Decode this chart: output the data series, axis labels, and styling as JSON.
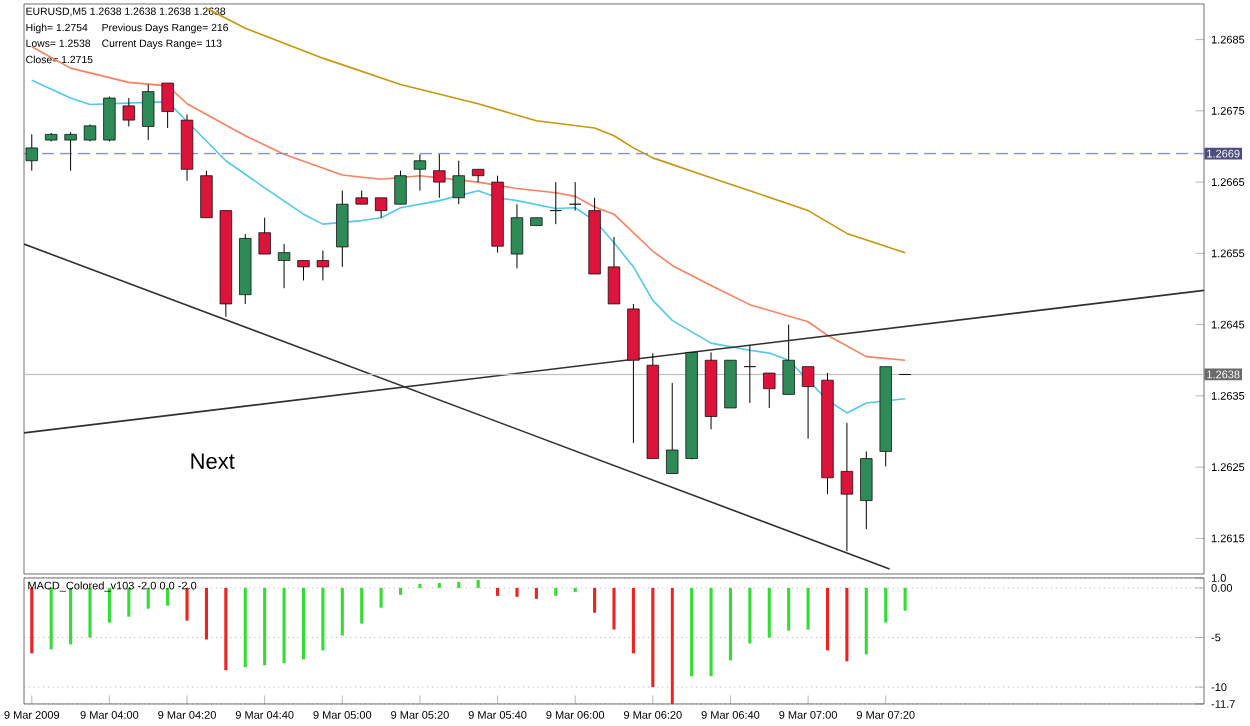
{
  "chart_data": [
    {
      "type": "candlestick",
      "annotations": [
        "EURUSD,M5  1.2638 1.2638 1.2638 1.2638",
        "High= 1.2754",
        "Previous Days Range= 216",
        "Lows= 1.2538",
        "Current Days Range= 113",
        "Close= 1.2715",
        "Next"
      ],
      "x": [
        "2009-03-09T03:40",
        "2009-03-09T03:45",
        "2009-03-09T03:50",
        "2009-03-09T03:55",
        "2009-03-09T04:00",
        "2009-03-09T04:05",
        "2009-03-09T04:10",
        "2009-03-09T04:15",
        "2009-03-09T04:20",
        "2009-03-09T04:25",
        "2009-03-09T04:30",
        "2009-03-09T04:35",
        "2009-03-09T04:40",
        "2009-03-09T04:45",
        "2009-03-09T04:50",
        "2009-03-09T04:55",
        "2009-03-09T05:00",
        "2009-03-09T05:05",
        "2009-03-09T05:10",
        "2009-03-09T05:15",
        "2009-03-09T05:20",
        "2009-03-09T05:25",
        "2009-03-09T05:30",
        "2009-03-09T05:35",
        "2009-03-09T05:40",
        "2009-03-09T05:45",
        "2009-03-09T05:50",
        "2009-03-09T05:55",
        "2009-03-09T06:00",
        "2009-03-09T06:05",
        "2009-03-09T06:10",
        "2009-03-09T06:15",
        "2009-03-09T06:20",
        "2009-03-09T06:25",
        "2009-03-09T06:30",
        "2009-03-09T06:35",
        "2009-03-09T06:40",
        "2009-03-09T06:45",
        "2009-03-09T06:50",
        "2009-03-09T06:55",
        "2009-03-09T07:00",
        "2009-03-09T07:05",
        "2009-03-09T07:10",
        "2009-03-09T07:15",
        "2009-03-09T07:20",
        "2009-03-09T07:25"
      ],
      "ohlc": [
        [
          1.2668,
          1.26717,
          1.26666,
          1.26698
        ],
        [
          1.26709,
          1.26719,
          1.26707,
          1.26717
        ],
        [
          1.26709,
          1.2672,
          1.26666,
          1.26717
        ],
        [
          1.26709,
          1.26731,
          1.26707,
          1.26729
        ],
        [
          1.26709,
          1.2677,
          1.26707,
          1.26768
        ],
        [
          1.26757,
          1.26768,
          1.26728,
          1.26737
        ],
        [
          1.26728,
          1.26787,
          1.26709,
          1.26777
        ],
        [
          1.26789,
          1.26789,
          1.26726,
          1.26749
        ],
        [
          1.26737,
          1.26745,
          1.26652,
          1.26668
        ],
        [
          1.26659,
          1.26666,
          1.266,
          1.266
        ],
        [
          1.2661,
          1.2661,
          1.26461,
          1.26479
        ],
        [
          1.26492,
          1.26577,
          1.26479,
          1.26571
        ],
        [
          1.26579,
          1.266,
          1.26549,
          1.26549
        ],
        [
          1.2654,
          1.26563,
          1.26501,
          1.26551
        ],
        [
          1.2654,
          1.2654,
          1.26512,
          1.26531
        ],
        [
          1.2654,
          1.26554,
          1.26512,
          1.26531
        ],
        [
          1.26559,
          1.26638,
          1.26531,
          1.26619
        ],
        [
          1.26628,
          1.26638,
          1.26619,
          1.26619
        ],
        [
          1.26628,
          1.26628,
          1.266,
          1.2661
        ],
        [
          1.26619,
          1.26666,
          1.26619,
          1.26659
        ],
        [
          1.26668,
          1.26689,
          1.26638,
          1.2668
        ],
        [
          1.26666,
          1.26689,
          1.26628,
          1.2665
        ],
        [
          1.26628,
          1.2668,
          1.26619,
          1.26659
        ],
        [
          1.26668,
          1.26668,
          1.2665,
          1.26659
        ],
        [
          1.2665,
          1.26659,
          1.26551,
          1.2656
        ],
        [
          1.26549,
          1.26619,
          1.26529,
          1.266
        ],
        [
          1.26589,
          1.266,
          1.26589,
          1.266
        ],
        [
          1.2661,
          1.2665,
          1.26591,
          1.2661
        ],
        [
          1.26619,
          1.2665,
          1.2661,
          1.26619
        ],
        [
          1.2661,
          1.26628,
          1.26521,
          1.26521
        ],
        [
          1.26531,
          1.26573,
          1.26479,
          1.26479
        ],
        [
          1.26472,
          1.26479,
          1.26284,
          1.264
        ],
        [
          1.26393,
          1.2641,
          1.26262,
          1.26262
        ],
        [
          1.26241,
          1.26368,
          1.26241,
          1.26274
        ],
        [
          1.26262,
          1.26411,
          1.26261,
          1.26411
        ],
        [
          1.264,
          1.26411,
          1.26303,
          1.26321
        ],
        [
          1.26333,
          1.264,
          1.26333,
          1.264
        ],
        [
          1.26391,
          1.26421,
          1.2634,
          1.26391
        ],
        [
          1.26382,
          1.26382,
          1.26333,
          1.2636
        ],
        [
          1.26352,
          1.2645,
          1.26352,
          1.264
        ],
        [
          1.26391,
          1.26391,
          1.2629,
          1.26363
        ],
        [
          1.26372,
          1.26382,
          1.26212,
          1.26235
        ],
        [
          1.26244,
          1.26312,
          1.26132,
          1.26212
        ],
        [
          1.26203,
          1.26272,
          1.26163,
          1.26262
        ],
        [
          1.26272,
          1.26391,
          1.26251,
          1.26391
        ],
        [
          1.2638,
          1.2638,
          1.2638,
          1.2638
        ]
      ],
      "colors": [
        "#2e8b57",
        "#2e8b57",
        "#2e8b57",
        "#2e8b57",
        "#2e8b57",
        "#dc143c",
        "#2e8b57",
        "#dc143c",
        "#dc143c",
        "#dc143c",
        "#dc143c",
        "#2e8b57",
        "#dc143c",
        "#2e8b57",
        "#dc143c",
        "#dc143c",
        "#2e8b57",
        "#dc143c",
        "#dc143c",
        "#2e8b57",
        "#2e8b57",
        "#dc143c",
        "#2e8b57",
        "#dc143c",
        "#dc143c",
        "#2e8b57",
        "#2e8b57",
        "#000000",
        "#000000",
        "#dc143c",
        "#dc143c",
        "#dc143c",
        "#dc143c",
        "#2e8b57",
        "#2e8b57",
        "#dc143c",
        "#2e8b57",
        "#000000",
        "#dc143c",
        "#2e8b57",
        "#dc143c",
        "#dc143c",
        "#dc143c",
        "#2e8b57",
        "#2e8b57",
        "#000000"
      ],
      "series": [
        {
          "type": "line",
          "color": "#c8960c",
          "x": [
            "2009-03-09T04:25",
            "2009-03-09T04:35",
            "2009-03-09T04:55",
            "2009-03-09T05:15",
            "2009-03-09T05:35",
            "2009-03-09T05:50",
            "2009-03-09T06:05",
            "2009-03-09T06:10",
            "2009-03-09T06:15",
            "2009-03-09T06:20",
            "2009-03-09T06:35",
            "2009-03-09T06:45",
            "2009-03-09T07:00",
            "2009-03-09T07:10",
            "2009-03-09T07:25"
          ],
          "values": [
            1.26894,
            1.26866,
            1.26824,
            1.26787,
            1.2676,
            1.26736,
            1.26726,
            1.26715,
            1.26698,
            1.26684,
            1.26656,
            1.26638,
            1.2661,
            1.26578,
            1.26551
          ]
        },
        {
          "type": "line",
          "color": "#fa8060",
          "x": [
            "2009-03-09T03:40",
            "2009-03-09T03:50",
            "2009-03-09T04:05",
            "2009-03-09T04:15",
            "2009-03-09T04:20",
            "2009-03-09T04:35",
            "2009-03-09T04:45",
            "2009-03-09T05:00",
            "2009-03-09T05:10",
            "2009-03-09T05:20",
            "2009-03-09T05:35",
            "2009-03-09T05:45",
            "2009-03-09T05:55",
            "2009-03-09T06:00",
            "2009-03-09T06:05",
            "2009-03-09T06:10",
            "2009-03-09T06:20",
            "2009-03-09T06:25",
            "2009-03-09T06:35",
            "2009-03-09T06:45",
            "2009-03-09T07:00",
            "2009-03-09T07:05",
            "2009-03-09T07:15",
            "2009-03-09T07:25"
          ],
          "values": [
            1.2684,
            1.2681,
            1.2679,
            1.26785,
            1.2676,
            1.26715,
            1.26689,
            1.2666,
            1.26654,
            1.26659,
            1.2665,
            1.26641,
            1.26635,
            1.2663,
            1.26615,
            1.26605,
            1.26553,
            1.26533,
            1.26505,
            1.26478,
            1.26454,
            1.26435,
            1.26405,
            1.264
          ]
        },
        {
          "type": "line",
          "color": "#50c8f0",
          "x": [
            "2009-03-09T03:40",
            "2009-03-09T03:50",
            "2009-03-09T03:55",
            "2009-03-09T04:15",
            "2009-03-09T04:20",
            "2009-03-09T04:30",
            "2009-03-09T04:40",
            "2009-03-09T04:50",
            "2009-03-09T04:55",
            "2009-03-09T05:05",
            "2009-03-09T05:10",
            "2009-03-09T05:15",
            "2009-03-09T05:25",
            "2009-03-09T05:35",
            "2009-03-09T05:40",
            "2009-03-09T05:45",
            "2009-03-09T05:55",
            "2009-03-09T06:00",
            "2009-03-09T06:05",
            "2009-03-09T06:10",
            "2009-03-09T06:15",
            "2009-03-09T06:20",
            "2009-03-09T06:25",
            "2009-03-09T06:35",
            "2009-03-09T06:45",
            "2009-03-09T06:50",
            "2009-03-09T06:55",
            "2009-03-09T07:05",
            "2009-03-09T07:10",
            "2009-03-09T07:15",
            "2009-03-09T07:25"
          ],
          "values": [
            1.26793,
            1.26768,
            1.26759,
            1.26763,
            1.26735,
            1.2668,
            1.26642,
            1.26605,
            1.26591,
            1.26596,
            1.266,
            1.26614,
            1.26624,
            1.26638,
            1.26628,
            1.26624,
            1.26613,
            1.26614,
            1.26596,
            1.26565,
            1.26531,
            1.26484,
            1.26456,
            1.26424,
            1.26414,
            1.2641,
            1.264,
            1.26344,
            1.26326,
            1.2634,
            1.26346
          ]
        },
        {
          "type": "line",
          "color": "#303030",
          "x": [
            "2009-03-09T03:38",
            "2009-03-09T07:21"
          ],
          "values": [
            1.26563,
            1.26107
          ]
        },
        {
          "type": "line",
          "color": "#303030",
          "x": [
            "2009-03-09T03:38",
            "2009-03-09T08:42"
          ],
          "values": [
            1.26298,
            1.26498
          ]
        }
      ],
      "ref_lines": [
        {
          "axis": "y",
          "value": 1.2669,
          "label": "1.2669",
          "color": "#8c8ce6",
          "line_style": "dashed"
        },
        {
          "axis": "y",
          "value": 1.2638,
          "label": "1.2638",
          "color": "#c0c0c0",
          "line_style": "solid"
        }
      ],
      "xlim": [
        "2009-03-09T03:38",
        "2009-03-09T08:42"
      ],
      "ylim": [
        1.261,
        1.269
      ],
      "yticks": [
        1.2685,
        1.2675,
        1.2665,
        1.2655,
        1.2645,
        1.2635,
        1.2625,
        1.2615
      ],
      "tick_labels": "y"
    },
    {
      "type": "bar",
      "title": "MACD_Colored_v103 -2.0 0.0 -2.0",
      "x": [
        "2009-03-09T03:40",
        "2009-03-09T03:45",
        "2009-03-09T03:50",
        "2009-03-09T03:55",
        "2009-03-09T04:00",
        "2009-03-09T04:05",
        "2009-03-09T04:10",
        "2009-03-09T04:15",
        "2009-03-09T04:20",
        "2009-03-09T04:25",
        "2009-03-09T04:30",
        "2009-03-09T04:35",
        "2009-03-09T04:40",
        "2009-03-09T04:45",
        "2009-03-09T04:50",
        "2009-03-09T04:55",
        "2009-03-09T05:00",
        "2009-03-09T05:05",
        "2009-03-09T05:10",
        "2009-03-09T05:15",
        "2009-03-09T05:20",
        "2009-03-09T05:25",
        "2009-03-09T05:30",
        "2009-03-09T05:35",
        "2009-03-09T05:40",
        "2009-03-09T05:45",
        "2009-03-09T05:50",
        "2009-03-09T05:55",
        "2009-03-09T06:00",
        "2009-03-09T06:05",
        "2009-03-09T06:10",
        "2009-03-09T06:15",
        "2009-03-09T06:20",
        "2009-03-09T06:25",
        "2009-03-09T06:30",
        "2009-03-09T06:35",
        "2009-03-09T06:40",
        "2009-03-09T06:45",
        "2009-03-09T06:50",
        "2009-03-09T06:55",
        "2009-03-09T07:00",
        "2009-03-09T07:05",
        "2009-03-09T07:10",
        "2009-03-09T07:15",
        "2009-03-09T07:20",
        "2009-03-09T07:25"
      ],
      "values": [
        -6.6,
        -6.2,
        -5.7,
        -5.0,
        -3.5,
        -2.9,
        -2.1,
        -1.8,
        -3.3,
        -5.2,
        -8.3,
        -8.0,
        -7.8,
        -7.6,
        -7.2,
        -6.3,
        -4.8,
        -3.6,
        -2.0,
        -0.7,
        0.4,
        0.5,
        0.6,
        0.8,
        -0.8,
        -0.9,
        -1.1,
        -0.8,
        -0.4,
        -2.5,
        -4.2,
        -6.6,
        -10.0,
        -11.7,
        -8.9,
        -8.9,
        -7.3,
        -5.6,
        -5.0,
        -4.3,
        -4.2,
        -6.3,
        -7.4,
        -6.7,
        -3.5,
        -2.3
      ],
      "colors": [
        "#ee2222",
        "#33dd33",
        "#33dd33",
        "#33dd33",
        "#33dd33",
        "#33dd33",
        "#33dd33",
        "#33dd33",
        "#ee2222",
        "#ee2222",
        "#ee2222",
        "#33dd33",
        "#33dd33",
        "#33dd33",
        "#33dd33",
        "#33dd33",
        "#33dd33",
        "#33dd33",
        "#33dd33",
        "#33dd33",
        "#33dd33",
        "#33dd33",
        "#33dd33",
        "#33dd33",
        "#ee2222",
        "#ee2222",
        "#ee2222",
        "#33dd33",
        "#33dd33",
        "#ee2222",
        "#ee2222",
        "#ee2222",
        "#ee2222",
        "#ee2222",
        "#33dd33",
        "#33dd33",
        "#33dd33",
        "#33dd33",
        "#33dd33",
        "#33dd33",
        "#33dd33",
        "#ee2222",
        "#ee2222",
        "#33dd33",
        "#33dd33",
        "#33dd33"
      ],
      "xlim": [
        "2009-03-09T03:38",
        "2009-03-09T08:42"
      ],
      "xticks": [
        {
          "value": "2009-03-09T03:40",
          "label": "9 Mar 2009"
        },
        {
          "value": "2009-03-09T04:00",
          "label": "9 Mar 04:00"
        },
        {
          "value": "2009-03-09T04:20",
          "label": "9 Mar 04:20"
        },
        {
          "value": "2009-03-09T04:40",
          "label": "9 Mar 04:40"
        },
        {
          "value": "2009-03-09T05:00",
          "label": "9 Mar 05:00"
        },
        {
          "value": "2009-03-09T05:20",
          "label": "9 Mar 05:20"
        },
        {
          "value": "2009-03-09T05:40",
          "label": "9 Mar 05:40"
        },
        {
          "value": "2009-03-09T06:00",
          "label": "9 Mar 06:00"
        },
        {
          "value": "2009-03-09T06:20",
          "label": "9 Mar 06:20"
        },
        {
          "value": "2009-03-09T06:40",
          "label": "9 Mar 06:40"
        },
        {
          "value": "2009-03-09T07:00",
          "label": "9 Mar 07:00"
        },
        {
          "value": "2009-03-09T07:20",
          "label": "9 Mar 07:20"
        }
      ],
      "ylim": [
        -11.7,
        1.0
      ],
      "yticks": [
        {
          "value": 1.0,
          "label": "1.0"
        },
        {
          "value": 0,
          "label": "0.00"
        },
        -5,
        -10,
        {
          "value": -11.7,
          "label": "-11.7"
        }
      ],
      "grid": "y"
    }
  ]
}
